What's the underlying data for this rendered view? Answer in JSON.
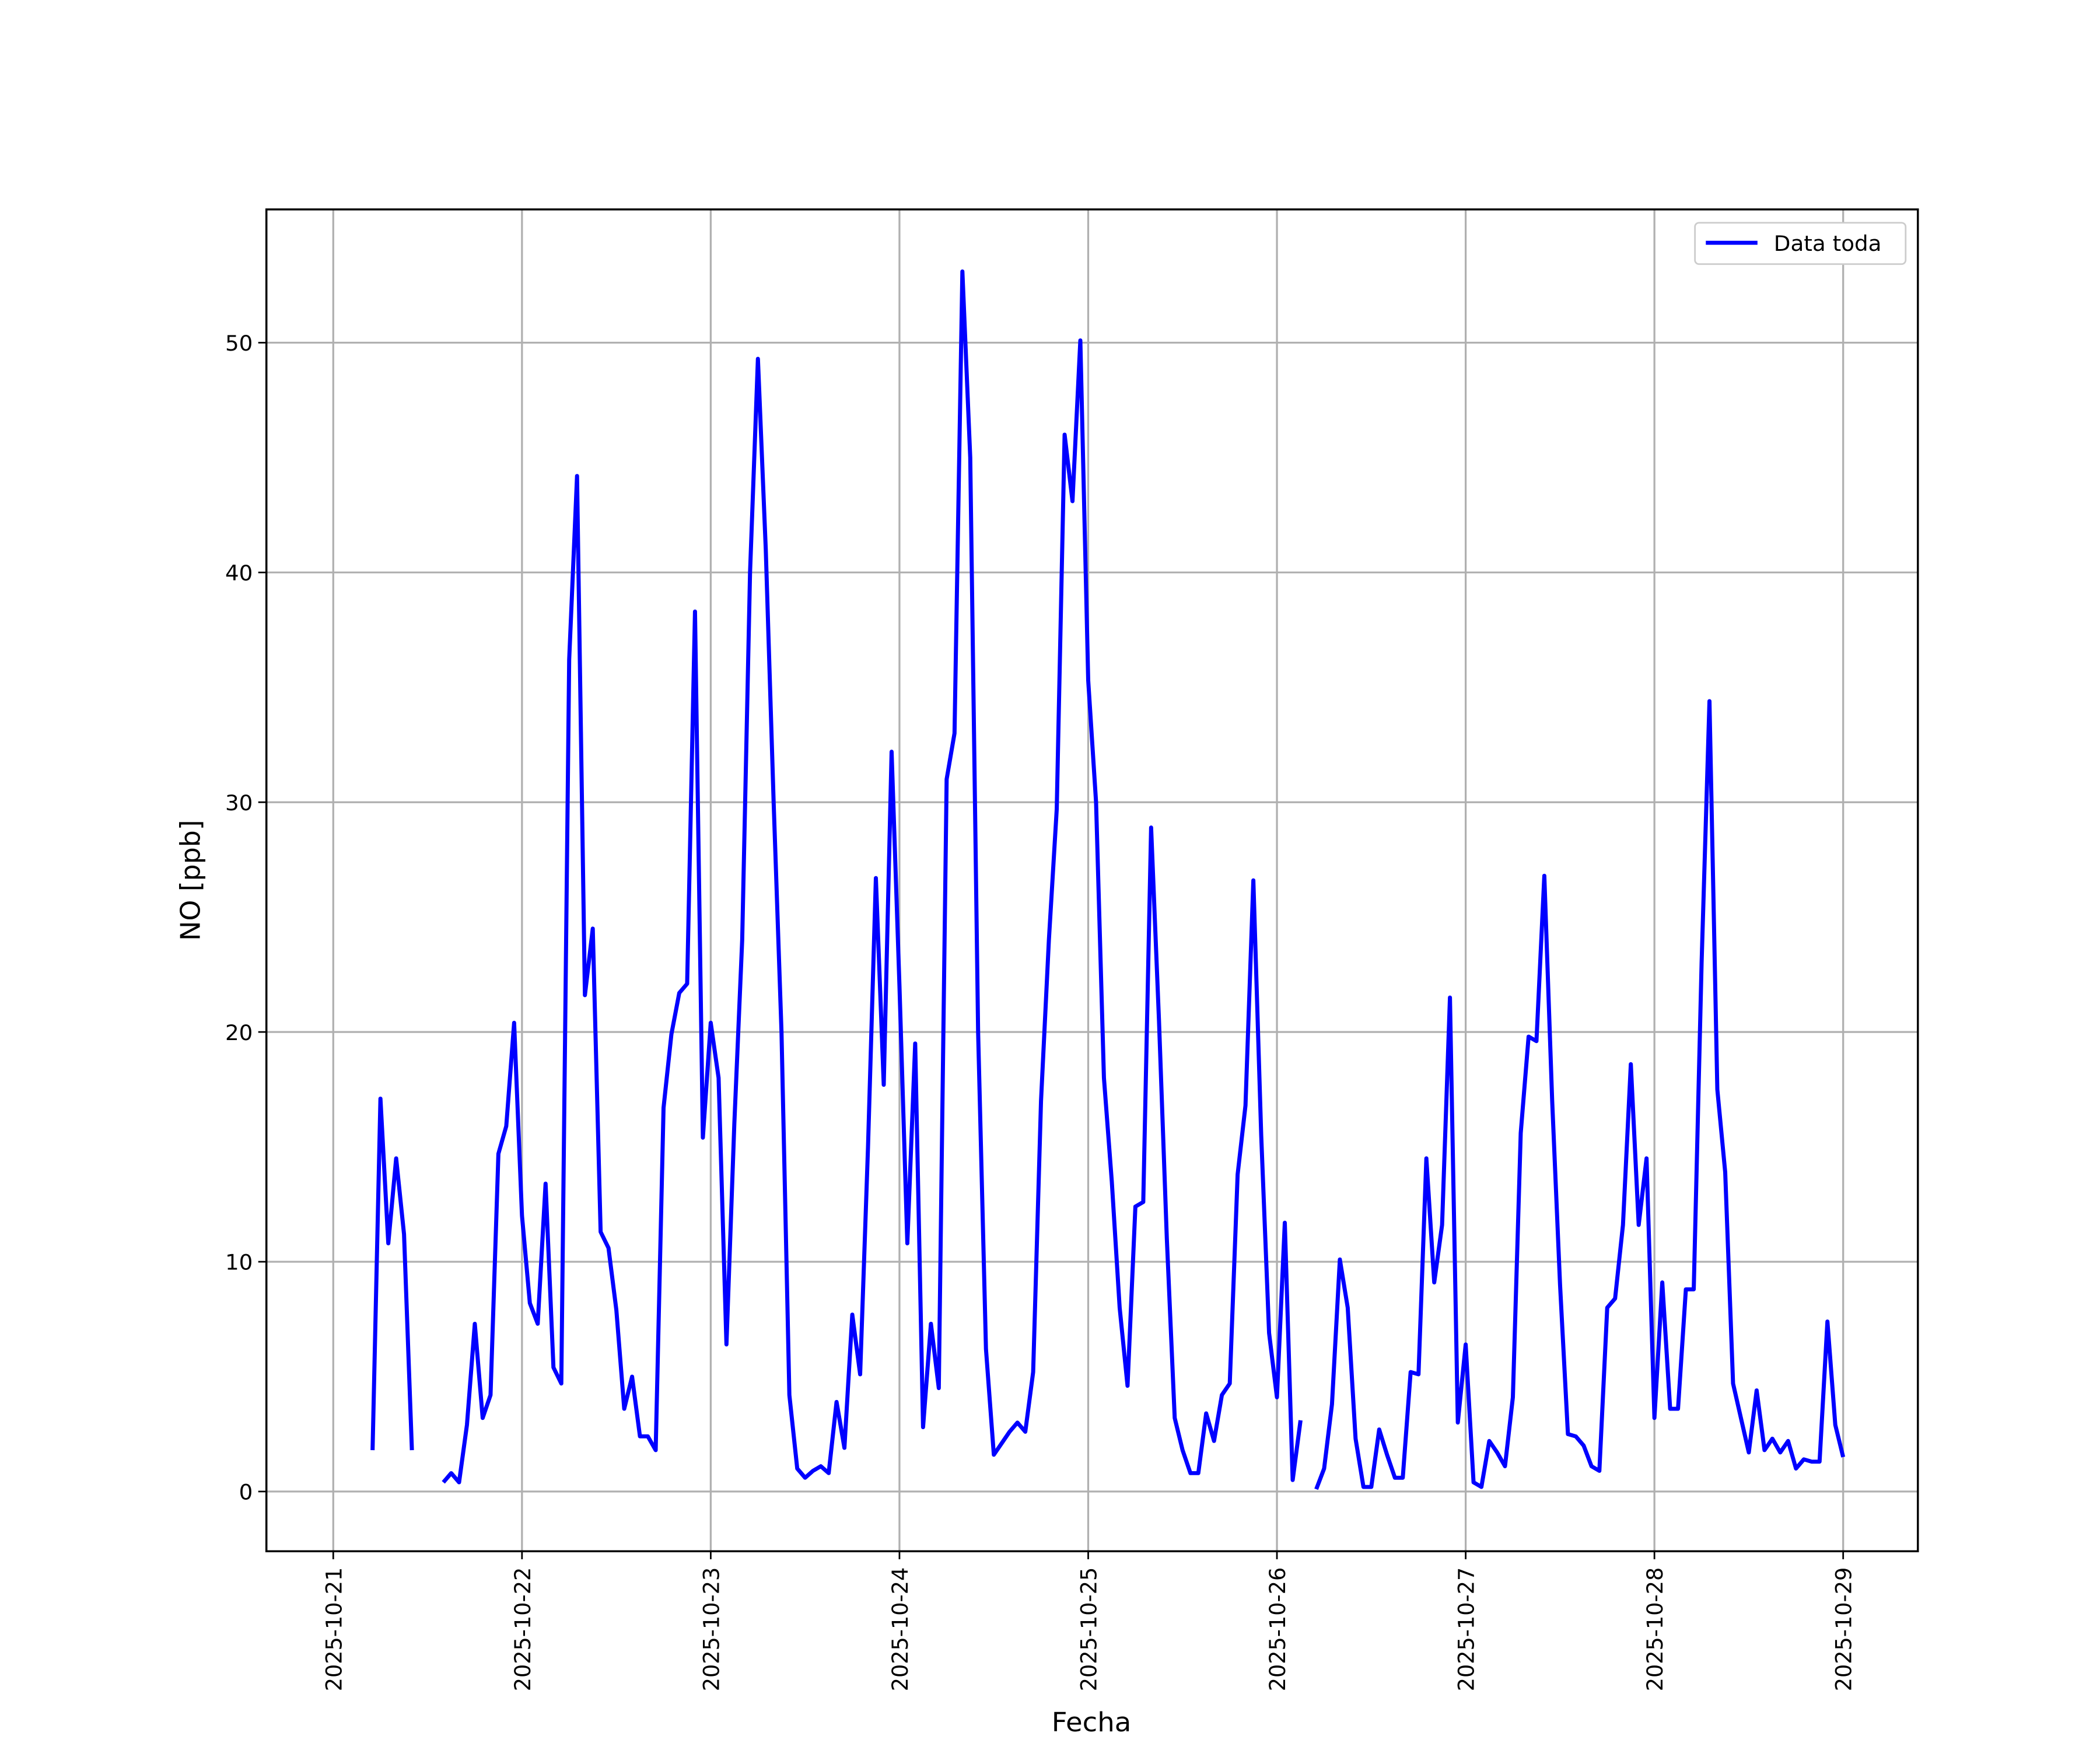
{
  "chart_data": {
    "type": "line",
    "xlabel": "Fecha",
    "ylabel": "NO [ppb]",
    "legend": "upper right",
    "grid": true,
    "xlim": [
      "2025-10-20 15:30",
      "2025-10-29 09:30"
    ],
    "xticks": [
      "2025-10-21",
      "2025-10-22",
      "2025-10-23",
      "2025-10-24",
      "2025-10-25",
      "2025-10-26",
      "2025-10-27",
      "2025-10-28",
      "2025-10-29"
    ],
    "ylim": [
      -2.6,
      55.8
    ],
    "yticks": [
      0,
      10,
      20,
      30,
      40,
      50
    ],
    "x": [
      "2025-10-21 05:00",
      "2025-10-21 06:00",
      "2025-10-21 07:00",
      "2025-10-21 08:00",
      "2025-10-21 09:00",
      "2025-10-21 10:00",
      "2025-10-21 11:00",
      "2025-10-21 12:00",
      "2025-10-21 13:00",
      "2025-10-21 14:00",
      "2025-10-21 15:00",
      "2025-10-21 16:00",
      "2025-10-21 17:00",
      "2025-10-21 18:00",
      "2025-10-21 19:00",
      "2025-10-21 20:00",
      "2025-10-21 21:00",
      "2025-10-21 22:00",
      "2025-10-21 23:00",
      "2025-10-22 00:00",
      "2025-10-22 01:00",
      "2025-10-22 02:00",
      "2025-10-22 03:00",
      "2025-10-22 04:00",
      "2025-10-22 05:00",
      "2025-10-22 06:00",
      "2025-10-22 07:00",
      "2025-10-22 08:00",
      "2025-10-22 09:00",
      "2025-10-22 10:00",
      "2025-10-22 11:00",
      "2025-10-22 12:00",
      "2025-10-22 13:00",
      "2025-10-22 14:00",
      "2025-10-22 15:00",
      "2025-10-22 16:00",
      "2025-10-22 17:00",
      "2025-10-22 18:00",
      "2025-10-22 19:00",
      "2025-10-22 20:00",
      "2025-10-22 21:00",
      "2025-10-22 22:00",
      "2025-10-22 23:00",
      "2025-10-23 00:00",
      "2025-10-23 01:00",
      "2025-10-23 02:00",
      "2025-10-23 03:00",
      "2025-10-23 04:00",
      "2025-10-23 05:00",
      "2025-10-23 06:00",
      "2025-10-23 07:00",
      "2025-10-23 08:00",
      "2025-10-23 09:00",
      "2025-10-23 10:00",
      "2025-10-23 11:00",
      "2025-10-23 12:00",
      "2025-10-23 13:00",
      "2025-10-23 14:00",
      "2025-10-23 15:00",
      "2025-10-23 16:00",
      "2025-10-23 17:00",
      "2025-10-23 18:00",
      "2025-10-23 19:00",
      "2025-10-23 20:00",
      "2025-10-23 21:00",
      "2025-10-23 22:00",
      "2025-10-23 23:00",
      "2025-10-24 00:00",
      "2025-10-24 01:00",
      "2025-10-24 02:00",
      "2025-10-24 03:00",
      "2025-10-24 04:00",
      "2025-10-24 05:00",
      "2025-10-24 06:00",
      "2025-10-24 07:00",
      "2025-10-24 08:00",
      "2025-10-24 09:00",
      "2025-10-24 10:00",
      "2025-10-24 11:00",
      "2025-10-24 12:00",
      "2025-10-24 13:00",
      "2025-10-24 14:00",
      "2025-10-24 15:00",
      "2025-10-24 16:00",
      "2025-10-24 17:00",
      "2025-10-24 18:00",
      "2025-10-24 19:00",
      "2025-10-24 20:00",
      "2025-10-24 21:00",
      "2025-10-24 22:00",
      "2025-10-24 23:00",
      "2025-10-25 00:00",
      "2025-10-25 01:00",
      "2025-10-25 02:00",
      "2025-10-25 03:00",
      "2025-10-25 04:00",
      "2025-10-25 05:00",
      "2025-10-25 06:00",
      "2025-10-25 07:00",
      "2025-10-25 08:00",
      "2025-10-25 09:00",
      "2025-10-25 10:00",
      "2025-10-25 11:00",
      "2025-10-25 12:00",
      "2025-10-25 13:00",
      "2025-10-25 14:00",
      "2025-10-25 15:00",
      "2025-10-25 16:00",
      "2025-10-25 17:00",
      "2025-10-25 18:00",
      "2025-10-25 19:00",
      "2025-10-25 20:00",
      "2025-10-25 21:00",
      "2025-10-25 22:00",
      "2025-10-25 23:00",
      "2025-10-26 00:00",
      "2025-10-26 01:00",
      "2025-10-26 02:00",
      "2025-10-26 03:00",
      "2025-10-26 04:00",
      "2025-10-26 05:00",
      "2025-10-26 06:00",
      "2025-10-26 07:00",
      "2025-10-26 08:00",
      "2025-10-26 09:00",
      "2025-10-26 10:00",
      "2025-10-26 11:00",
      "2025-10-26 12:00",
      "2025-10-26 13:00",
      "2025-10-26 14:00",
      "2025-10-26 15:00",
      "2025-10-26 16:00",
      "2025-10-26 17:00",
      "2025-10-26 18:00",
      "2025-10-26 19:00",
      "2025-10-26 20:00",
      "2025-10-26 21:00",
      "2025-10-26 22:00",
      "2025-10-26 23:00",
      "2025-10-27 00:00",
      "2025-10-27 01:00",
      "2025-10-27 02:00",
      "2025-10-27 03:00",
      "2025-10-27 04:00",
      "2025-10-27 05:00",
      "2025-10-27 06:00",
      "2025-10-27 07:00",
      "2025-10-27 08:00",
      "2025-10-27 09:00",
      "2025-10-27 10:00",
      "2025-10-27 11:00",
      "2025-10-27 12:00",
      "2025-10-27 13:00",
      "2025-10-27 14:00",
      "2025-10-27 15:00",
      "2025-10-27 16:00",
      "2025-10-27 17:00",
      "2025-10-27 18:00",
      "2025-10-27 19:00",
      "2025-10-27 20:00",
      "2025-10-27 21:00",
      "2025-10-27 22:00",
      "2025-10-27 23:00",
      "2025-10-28 00:00",
      "2025-10-28 01:00",
      "2025-10-28 02:00",
      "2025-10-28 03:00",
      "2025-10-28 04:00",
      "2025-10-28 05:00",
      "2025-10-28 06:00",
      "2025-10-28 07:00",
      "2025-10-28 08:00",
      "2025-10-28 09:00",
      "2025-10-28 10:00",
      "2025-10-28 11:00",
      "2025-10-28 12:00",
      "2025-10-28 13:00",
      "2025-10-28 14:00",
      "2025-10-28 15:00",
      "2025-10-28 16:00",
      "2025-10-28 17:00",
      "2025-10-28 18:00",
      "2025-10-28 19:00",
      "2025-10-28 20:00",
      "2025-10-28 21:00",
      "2025-10-28 22:00",
      "2025-10-28 23:00",
      "2025-10-29 00:00"
    ],
    "series": [
      {
        "name": "Data toda",
        "color": "#0000ff",
        "values": [
          1.8,
          17.1,
          10.8,
          14.5,
          11.2,
          1.8,
          null,
          null,
          null,
          0.4,
          0.8,
          0.4,
          2.9,
          7.3,
          3.2,
          4.2,
          14.7,
          15.9,
          20.4,
          12,
          8.2,
          7.3,
          13.4,
          5.4,
          4.7,
          36.2,
          44.2,
          21.6,
          24.5,
          11.3,
          10.6,
          7.9,
          3.6,
          5,
          2.4,
          2.4,
          1.8,
          16.7,
          19.9,
          21.7,
          22.1,
          38.3,
          15.4,
          20.4,
          18,
          6.4,
          16,
          24,
          40,
          49.3,
          41,
          30,
          20,
          4.2,
          1,
          0.6,
          0.9,
          1.1,
          0.8,
          3.9,
          1.9,
          7.7,
          5.1,
          15,
          26.7,
          17.7,
          32.2,
          22,
          10.8,
          19.5,
          2.8,
          7.3,
          4.5,
          31,
          33,
          53.1,
          45,
          20,
          6.2,
          1.6,
          2.1,
          2.6,
          3,
          2.6,
          5.2,
          17,
          24,
          29.7,
          46,
          43.1,
          50.1,
          35.3,
          30,
          18,
          13.5,
          8,
          4.6,
          12.4,
          12.6,
          28.9,
          20.5,
          11,
          3.2,
          1.8,
          0.8,
          0.8,
          3.4,
          2.2,
          4.2,
          4.7,
          13.8,
          16.8,
          26.6,
          15.5,
          6.9,
          4.1,
          11.7,
          0.5,
          3.1,
          null,
          0.1,
          1,
          3.8,
          10.1,
          8,
          2.3,
          0.2,
          0.2,
          2.7,
          1.6,
          0.6,
          0.6,
          5.2,
          5.1,
          14.5,
          9.1,
          11.6,
          21.5,
          3,
          6.4,
          0.4,
          0.2,
          2.2,
          1.7,
          1.1,
          4.1,
          15.6,
          19.8,
          19.6,
          26.8,
          17,
          9,
          2.5,
          2.4,
          2,
          1.1,
          0.9,
          8,
          8.4,
          11.6,
          18.6,
          11.6,
          14.5,
          3.2,
          9.1,
          3.6,
          3.6,
          8.8,
          8.8,
          23,
          34.4,
          17.5,
          13.9,
          4.7,
          3.2,
          1.7,
          4.4,
          1.8,
          2.3,
          1.7,
          2.2,
          1,
          1.4,
          1.3,
          1.3,
          7.4,
          2.9,
          1.5
        ]
      }
    ]
  }
}
